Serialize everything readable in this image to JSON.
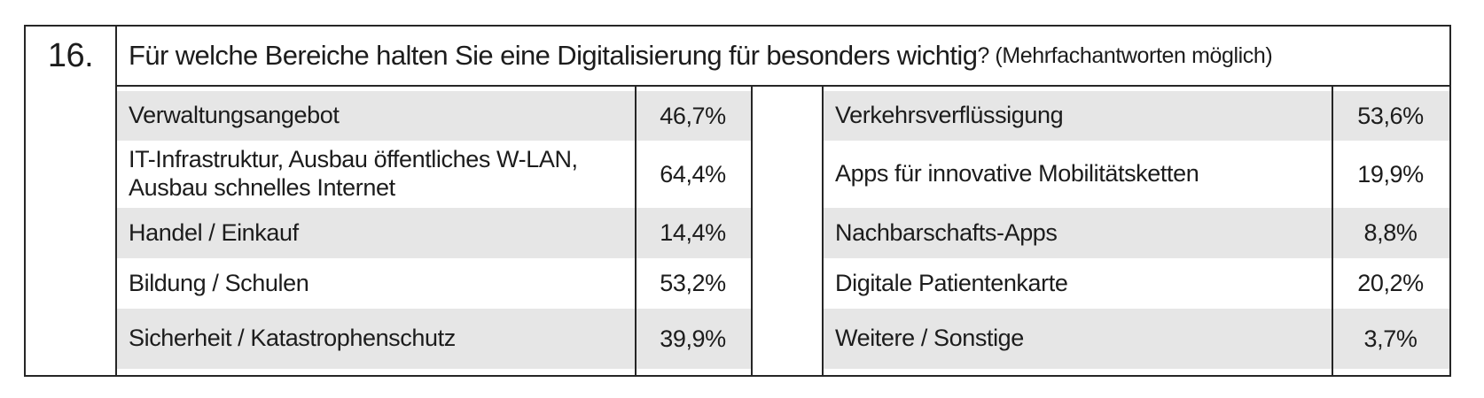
{
  "document": {
    "question_number": "16.",
    "question_text": "Für welche Bereiche halten Sie eine Digitalisierung für besonders wichtig",
    "question_suffix": "? (Mehrfachantworten möglich)"
  },
  "answers_left": {
    "rows": [
      {
        "label": "Verwaltungsangebot",
        "value": "46,7%"
      },
      {
        "label": "IT-Infrastruktur, Ausbau öffentliches W-LAN, Ausbau schnelles Internet",
        "value": "64,4%"
      },
      {
        "label": "Handel / Einkauf",
        "value": "14,4%"
      },
      {
        "label": "Bildung / Schulen",
        "value": "53,2%"
      },
      {
        "label": "Sicherheit / Katastrophenschutz",
        "value": "39,9%"
      }
    ]
  },
  "answers_right": {
    "rows": [
      {
        "label": "Verkehrsverflüssigung",
        "value": "53,6%"
      },
      {
        "label": "Apps für innovative Mobilitätsketten",
        "value": "19,9%"
      },
      {
        "label": "Nachbarschafts-Apps",
        "value": "8,8%"
      },
      {
        "label": "Digitale Patientenkarte",
        "value": "20,2%"
      },
      {
        "label": "Weitere / Sonstige",
        "value": "3,7%"
      }
    ]
  },
  "colors": {
    "row_shade": "#e6e6e6",
    "border": "#262626",
    "text": "#1c1c1c",
    "background": "#ffffff"
  }
}
